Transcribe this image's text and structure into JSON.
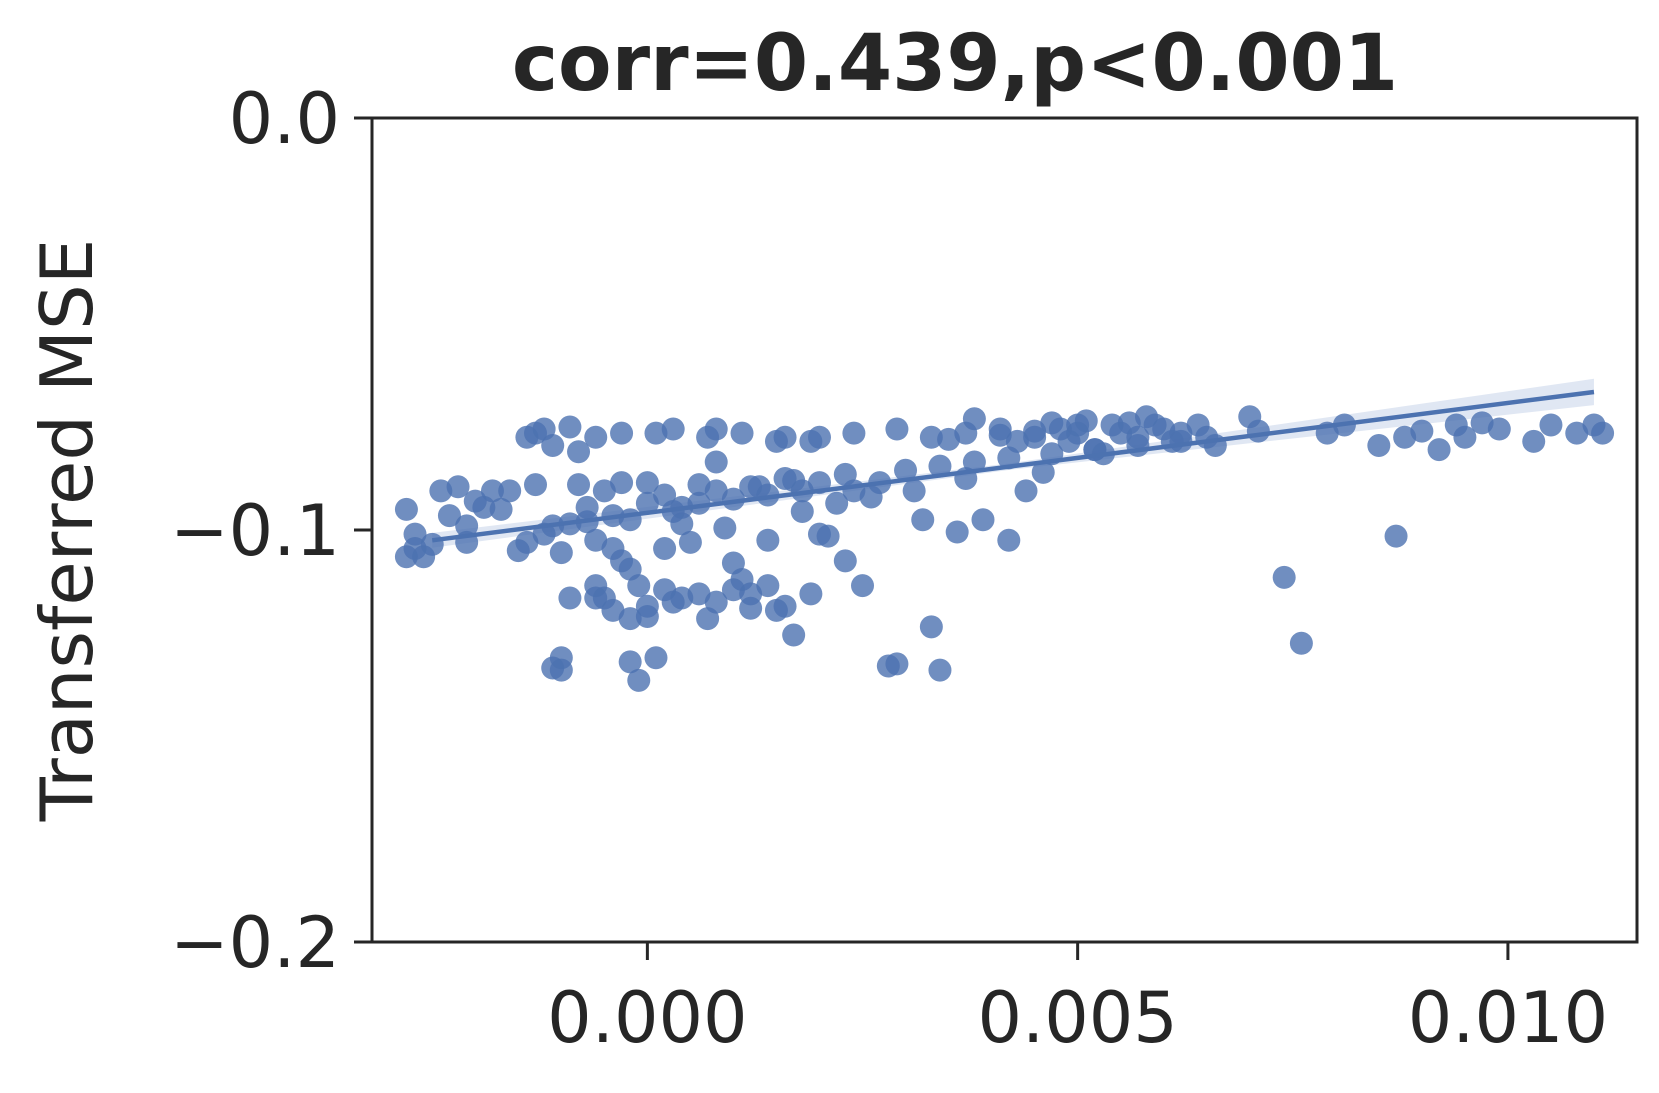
{
  "chart_data": {
    "type": "scatter",
    "title": "corr=0.439,p<0.001",
    "xlabel": "",
    "ylabel": "Transferred MSE",
    "xlim": [
      -0.0032,
      0.0115
    ],
    "ylim": [
      -0.2,
      0.0
    ],
    "xticks": [
      0.0,
      0.005,
      0.01
    ],
    "xtick_labels": [
      "0.000",
      "0.005",
      "0.010"
    ],
    "yticks": [
      0.0,
      -0.1,
      -0.2
    ],
    "ytick_labels": [
      "0.0",
      "−0.1",
      "−0.2"
    ],
    "grid": false,
    "colors": {
      "points": "#4c72b0",
      "line": "#4c72b0",
      "band": "#dbe3f1",
      "axes": "#262626"
    },
    "regression": {
      "x": [
        -0.0025,
        0.011
      ],
      "y": [
        -0.1025,
        -0.0665
      ]
    },
    "points": [
      [
        -0.0028,
        -0.095
      ],
      [
        -0.0028,
        -0.1065
      ],
      [
        -0.0027,
        -0.1045
      ],
      [
        -0.0026,
        -0.1065
      ],
      [
        -0.0025,
        -0.1035
      ],
      [
        -0.0024,
        -0.0905
      ],
      [
        -0.0022,
        -0.0895
      ],
      [
        -0.0021,
        -0.103
      ],
      [
        -0.002,
        -0.093
      ],
      [
        -0.0019,
        -0.0945
      ],
      [
        -0.0018,
        -0.0905
      ],
      [
        -0.0016,
        -0.0905
      ],
      [
        -0.0015,
        -0.105
      ],
      [
        -0.0014,
        -0.103
      ],
      [
        -0.0013,
        -0.089
      ],
      [
        -0.0013,
        -0.0765
      ],
      [
        -0.0012,
        -0.0755
      ],
      [
        -0.0011,
        -0.0795
      ],
      [
        -0.0011,
        -0.099
      ],
      [
        -0.001,
        -0.1055
      ],
      [
        -0.001,
        -0.131
      ],
      [
        -0.0011,
        -0.1335
      ],
      [
        -0.001,
        -0.134
      ],
      [
        -0.0009,
        -0.075
      ],
      [
        -0.0008,
        -0.081
      ],
      [
        -0.0008,
        -0.089
      ],
      [
        -0.0007,
        -0.098
      ],
      [
        -0.0006,
        -0.1025
      ],
      [
        -0.0006,
        -0.1165
      ],
      [
        -0.0005,
        -0.1165
      ],
      [
        -0.0005,
        -0.0905
      ],
      [
        -0.0004,
        -0.1045
      ],
      [
        -0.0003,
        -0.0885
      ],
      [
        -0.0003,
        -0.1075
      ],
      [
        -0.0002,
        -0.132
      ],
      [
        -0.0002,
        -0.1095
      ],
      [
        -0.0001,
        -0.1135
      ],
      [
        -0.0001,
        -0.1365
      ],
      [
        0.0,
        -0.0885
      ],
      [
        0.0,
        -0.121
      ],
      [
        0.0001,
        -0.131
      ],
      [
        0.0001,
        -0.0765
      ],
      [
        0.0002,
        -0.1045
      ],
      [
        0.0003,
        -0.0955
      ],
      [
        0.0003,
        -0.1175
      ],
      [
        0.0004,
        -0.0985
      ],
      [
        0.0005,
        -0.103
      ],
      [
        0.0006,
        -0.089
      ],
      [
        0.0007,
        -0.1215
      ],
      [
        0.0008,
        -0.0755
      ],
      [
        0.0008,
        -0.0835
      ],
      [
        0.0009,
        -0.0995
      ],
      [
        0.001,
        -0.108
      ],
      [
        0.0011,
        -0.112
      ],
      [
        0.0012,
        -0.119
      ],
      [
        0.0013,
        -0.0895
      ],
      [
        0.0014,
        -0.1025
      ],
      [
        0.0015,
        -0.1195
      ],
      [
        0.0016,
        -0.0775
      ],
      [
        0.0017,
        -0.088
      ],
      [
        0.0018,
        -0.0955
      ],
      [
        0.0019,
        -0.0785
      ],
      [
        0.002,
        -0.101
      ],
      [
        0.0021,
        -0.1015
      ],
      [
        0.0022,
        -0.0935
      ],
      [
        0.0023,
        -0.1075
      ],
      [
        0.0024,
        -0.0905
      ],
      [
        0.0025,
        -0.1135
      ],
      [
        0.0026,
        -0.092
      ],
      [
        0.0028,
        -0.133
      ],
      [
        0.0029,
        -0.1325
      ],
      [
        0.0031,
        -0.0905
      ],
      [
        0.0032,
        -0.0975
      ],
      [
        0.0033,
        -0.1235
      ],
      [
        0.0034,
        -0.134
      ],
      [
        0.0035,
        -0.078
      ],
      [
        0.0036,
        -0.1005
      ],
      [
        0.0037,
        -0.0875
      ],
      [
        0.0038,
        -0.073
      ],
      [
        0.0039,
        -0.0975
      ],
      [
        0.0041,
        -0.077
      ],
      [
        0.0042,
        -0.1025
      ],
      [
        0.0043,
        -0.0785
      ],
      [
        0.0044,
        -0.0905
      ],
      [
        0.0045,
        -0.076
      ],
      [
        0.0046,
        -0.086
      ],
      [
        0.0047,
        -0.074
      ],
      [
        0.0048,
        -0.0755
      ],
      [
        0.0049,
        -0.0785
      ],
      [
        0.005,
        -0.0765
      ],
      [
        0.0051,
        -0.0735
      ],
      [
        0.0052,
        -0.0805
      ],
      [
        0.0053,
        -0.0815
      ],
      [
        0.0054,
        -0.0745
      ],
      [
        0.0055,
        -0.0765
      ],
      [
        0.0056,
        -0.074
      ],
      [
        0.0057,
        -0.0775
      ],
      [
        0.0058,
        -0.0725
      ],
      [
        0.0059,
        -0.0745
      ],
      [
        0.006,
        -0.0755
      ],
      [
        0.0061,
        -0.0785
      ],
      [
        0.0062,
        -0.0765
      ],
      [
        0.0064,
        -0.0745
      ],
      [
        0.0065,
        -0.0775
      ],
      [
        0.0066,
        -0.0795
      ],
      [
        0.007,
        -0.0725
      ],
      [
        0.0071,
        -0.076
      ],
      [
        0.0074,
        -0.1115
      ],
      [
        0.0076,
        -0.1275
      ],
      [
        0.0079,
        -0.0765
      ],
      [
        0.0081,
        -0.0745
      ],
      [
        0.0085,
        -0.0795
      ],
      [
        0.0087,
        -0.1015
      ],
      [
        0.0088,
        -0.0775
      ],
      [
        0.009,
        -0.076
      ],
      [
        0.0092,
        -0.0805
      ],
      [
        0.0094,
        -0.0745
      ],
      [
        0.0095,
        -0.0775
      ],
      [
        0.0097,
        -0.074
      ],
      [
        0.0099,
        -0.0755
      ],
      [
        0.0103,
        -0.0785
      ],
      [
        0.0105,
        -0.0745
      ],
      [
        0.0108,
        -0.0765
      ],
      [
        0.011,
        -0.0745
      ],
      [
        0.0111,
        -0.0765
      ],
      [
        -0.0027,
        -0.101
      ],
      [
        -0.0023,
        -0.0965
      ],
      [
        -0.0021,
        -0.099
      ],
      [
        -0.0017,
        -0.095
      ],
      [
        -0.0012,
        -0.101
      ],
      [
        -0.0009,
        -0.0985
      ],
      [
        -0.0007,
        -0.0945
      ],
      [
        -0.0004,
        -0.0965
      ],
      [
        -0.0002,
        -0.0975
      ],
      [
        0.0,
        -0.0935
      ],
      [
        0.0002,
        -0.0915
      ],
      [
        0.0004,
        -0.0945
      ],
      [
        0.0006,
        -0.0935
      ],
      [
        0.0008,
        -0.0905
      ],
      [
        0.001,
        -0.0925
      ],
      [
        0.0012,
        -0.0895
      ],
      [
        0.0014,
        -0.0915
      ],
      [
        0.0016,
        -0.0875
      ],
      [
        0.0018,
        -0.0905
      ],
      [
        0.002,
        -0.0885
      ],
      [
        0.0023,
        -0.0865
      ],
      [
        0.0027,
        -0.0885
      ],
      [
        0.003,
        -0.0855
      ],
      [
        0.0034,
        -0.0845
      ],
      [
        0.0038,
        -0.0835
      ],
      [
        0.0042,
        -0.0825
      ],
      [
        0.0047,
        -0.0815
      ],
      [
        0.0052,
        -0.0805
      ],
      [
        0.0057,
        -0.0795
      ],
      [
        0.0062,
        -0.0785
      ],
      [
        -0.0014,
        -0.0775
      ],
      [
        -0.0006,
        -0.0775
      ],
      [
        -0.0003,
        -0.0765
      ],
      [
        0.0003,
        -0.0755
      ],
      [
        0.0007,
        -0.0775
      ],
      [
        0.0011,
        -0.0765
      ],
      [
        0.0015,
        -0.0785
      ],
      [
        0.002,
        -0.0775
      ],
      [
        0.0024,
        -0.0765
      ],
      [
        0.0029,
        -0.0755
      ],
      [
        0.0033,
        -0.0775
      ],
      [
        0.0037,
        -0.0765
      ],
      [
        0.0041,
        -0.0755
      ],
      [
        0.0045,
        -0.0775
      ],
      [
        0.005,
        -0.0745
      ],
      [
        -0.0009,
        -0.1165
      ],
      [
        -0.0004,
        -0.1195
      ],
      [
        0.0,
        -0.1185
      ],
      [
        0.0004,
        -0.1165
      ],
      [
        0.0008,
        -0.1175
      ],
      [
        0.0012,
        -0.1155
      ],
      [
        0.0016,
        -0.1185
      ],
      [
        0.0019,
        -0.1155
      ],
      [
        -0.0006,
        -0.1135
      ],
      [
        0.0002,
        -0.1145
      ],
      [
        0.0006,
        -0.1155
      ],
      [
        0.001,
        -0.1145
      ],
      [
        0.0014,
        -0.1135
      ],
      [
        -0.0002,
        -0.1215
      ],
      [
        0.0017,
        -0.1255
      ]
    ]
  }
}
